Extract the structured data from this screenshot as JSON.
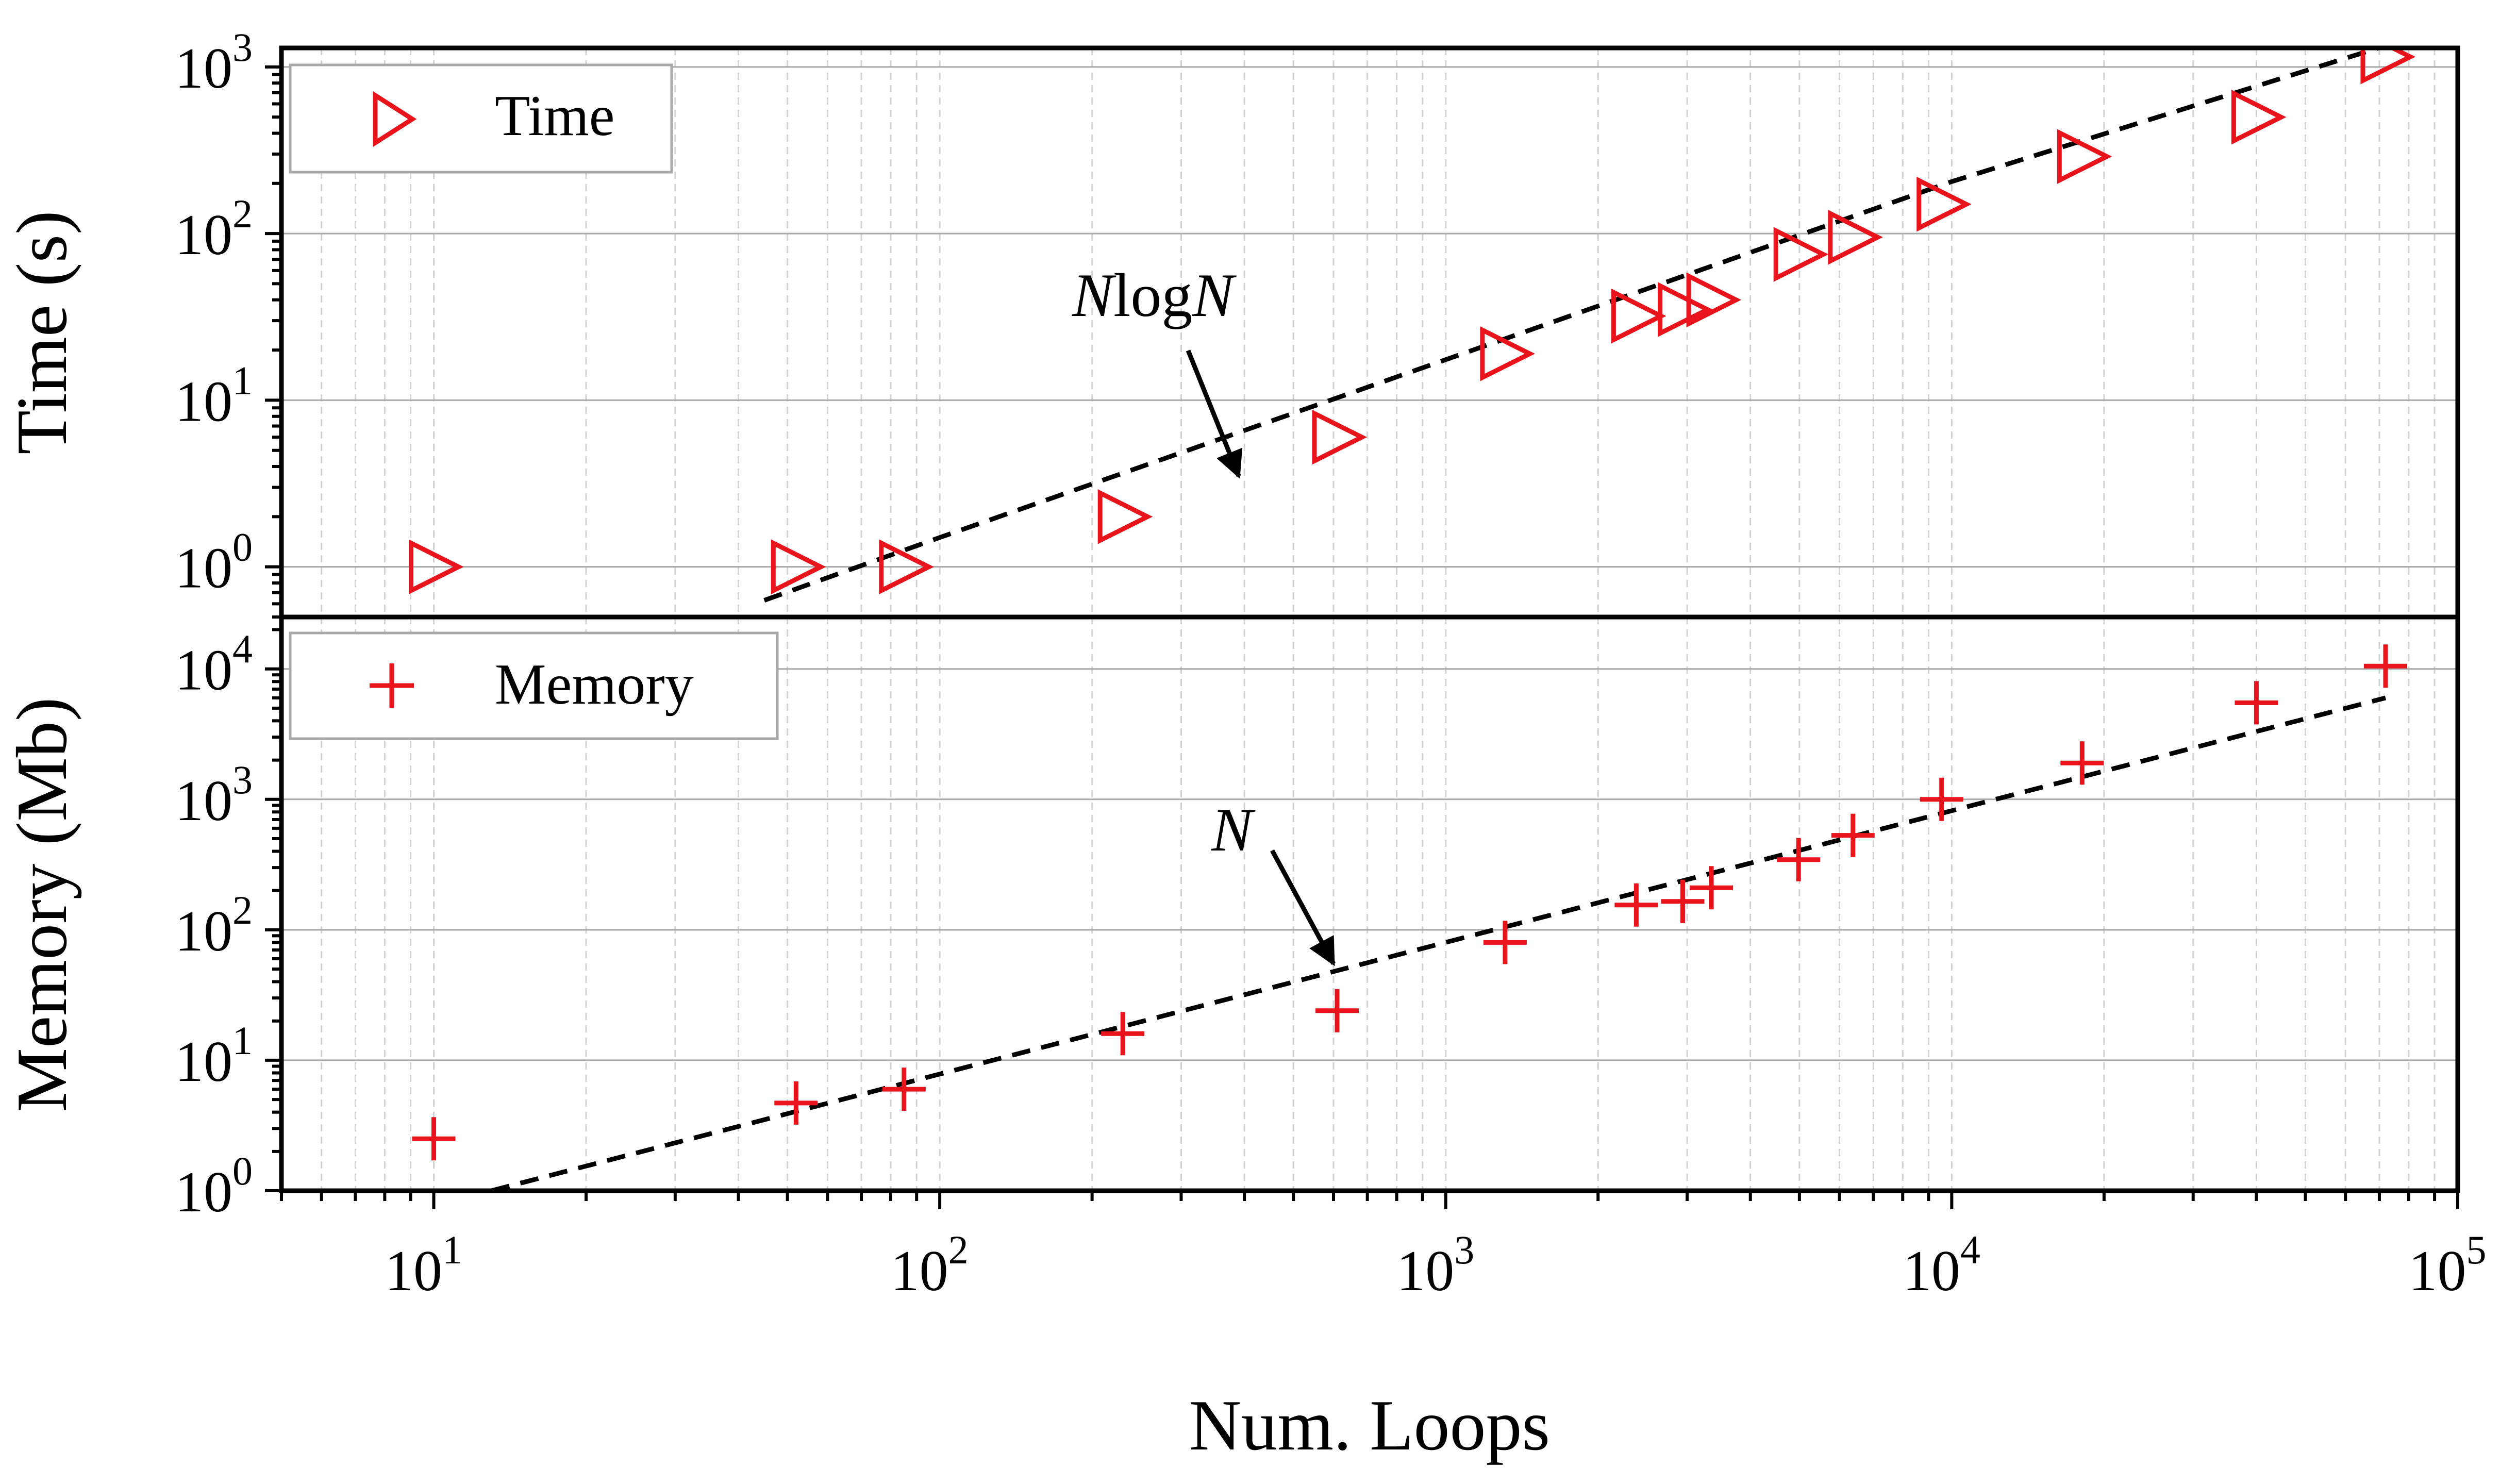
{
  "chart_data": {
    "type": "scatter",
    "x_axis": {
      "label": "Num. Loops",
      "scale": "log",
      "xlim": [
        5,
        100000
      ],
      "tick_labels": [
        {
          "value": 10,
          "base": "10",
          "exp": "1"
        },
        {
          "value": 100,
          "base": "10",
          "exp": "2"
        },
        {
          "value": 1000,
          "base": "10",
          "exp": "3"
        },
        {
          "value": 10000,
          "base": "10",
          "exp": "4"
        },
        {
          "value": 100000,
          "base": "10",
          "exp": "5"
        }
      ]
    },
    "panels": [
      {
        "id": "time",
        "ylabel": "Time (s)",
        "yscale": "log",
        "ylim": [
          0.5,
          1300
        ],
        "y_tick_labels": [
          {
            "value": 1,
            "base": "10",
            "exp": "0"
          },
          {
            "value": 10,
            "base": "10",
            "exp": "1"
          },
          {
            "value": 100,
            "base": "10",
            "exp": "2"
          },
          {
            "value": 1000,
            "base": "10",
            "exp": "3"
          }
        ],
        "legend": {
          "label": "Time",
          "marker": "triangle-right",
          "placement": "top-left"
        },
        "marker_color": "#e8131b",
        "series": {
          "name": "Time",
          "x": [
            10,
            52,
            85,
            230,
            610,
            1310,
            2380,
            2940,
            3350,
            4980,
            6380,
            9550,
            18100,
            40000,
            72000
          ],
          "y": [
            1.0,
            1.0,
            1.0,
            2.0,
            6.0,
            19,
            32,
            35,
            40,
            75,
            95,
            150,
            290,
            500,
            1150
          ]
        },
        "fit_line": {
          "label_main": "N",
          "label_log": "log",
          "label_tail": "N",
          "style": "dashed",
          "color": "#000000",
          "points": [
            [
              45,
              0.63
            ],
            [
              100,
              1.5
            ],
            [
              1000,
              17.5
            ],
            [
              10000,
              205
            ],
            [
              72000,
              1340
            ]
          ]
        },
        "annotation_target": {
          "x": 390,
          "y": 3.5
        }
      },
      {
        "id": "memory",
        "ylabel": "Memory (Mb)",
        "yscale": "log",
        "ylim": [
          1,
          25000
        ],
        "y_tick_labels": [
          {
            "value": 1,
            "base": "10",
            "exp": "0"
          },
          {
            "value": 10,
            "base": "10",
            "exp": "1"
          },
          {
            "value": 100,
            "base": "10",
            "exp": "2"
          },
          {
            "value": 1000,
            "base": "10",
            "exp": "3"
          },
          {
            "value": 10000,
            "base": "10",
            "exp": "4"
          }
        ],
        "legend": {
          "label": "Memory",
          "marker": "plus",
          "placement": "top-left"
        },
        "marker_color": "#e8131b",
        "series": {
          "name": "Memory",
          "x": [
            10,
            52,
            85,
            230,
            610,
            1310,
            2380,
            2940,
            3350,
            4980,
            6380,
            9550,
            18100,
            40000,
            72000
          ],
          "y": [
            2.5,
            4.7,
            6.0,
            16,
            24,
            80,
            155,
            165,
            210,
            345,
            530,
            1000,
            1900,
            5500,
            10500
          ]
        },
        "fit_line": {
          "label": "N",
          "style": "dashed",
          "color": "#000000",
          "points": [
            [
              13,
              1.0
            ],
            [
              72000,
              6000
            ]
          ]
        },
        "annotation_target": {
          "x": 600,
          "y": 55
        }
      }
    ]
  }
}
